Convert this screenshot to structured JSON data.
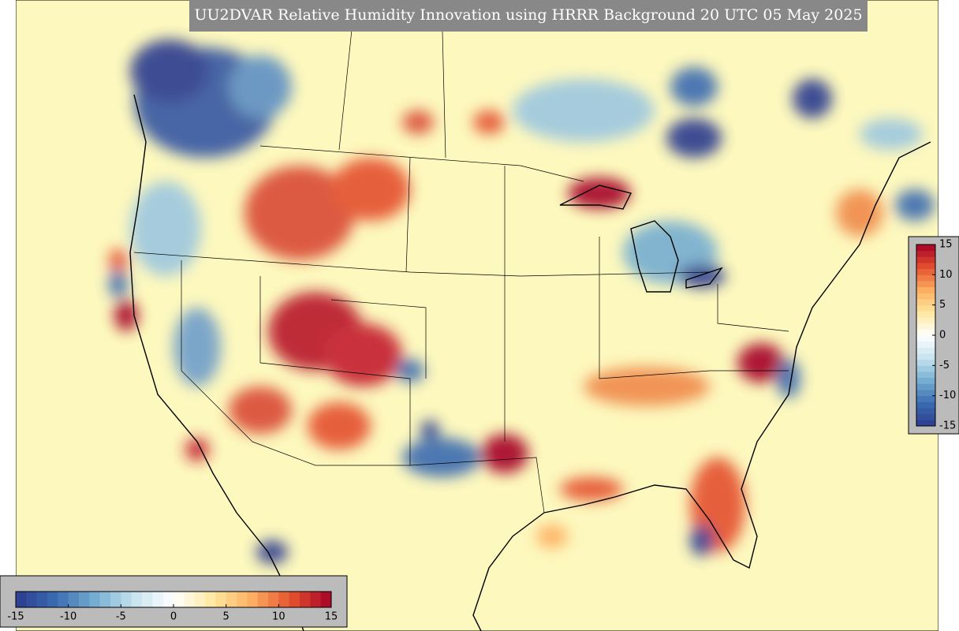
{
  "title": "UU2DVAR Relative Humidity Innovation using HRRR Background 20 UTC 05 May 2025",
  "colorbars": [
    {
      "orientation": "horizontal",
      "range": [
        -15,
        15
      ],
      "ticks": [
        -15,
        -10,
        -5,
        0,
        5,
        10,
        15
      ],
      "colors": [
        "#2c3a8f",
        "#3b6bb0",
        "#74add1",
        "#c6e3ef",
        "#ffffff",
        "#fee9a0",
        "#fdae61",
        "#e4502e",
        "#a50026"
      ]
    },
    {
      "orientation": "vertical",
      "range": [
        -15,
        15
      ],
      "ticks": [
        -15,
        -10,
        -5,
        0,
        5,
        10,
        15
      ],
      "colors": [
        "#2c3a8f",
        "#3b6bb0",
        "#74add1",
        "#c6e3ef",
        "#ffffff",
        "#fee9a0",
        "#fdae61",
        "#e4502e",
        "#a50026"
      ]
    }
  ]
}
